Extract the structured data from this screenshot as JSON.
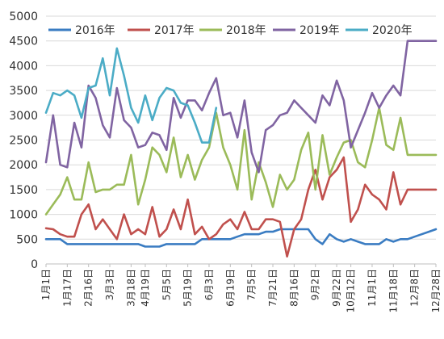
{
  "chart_data": {
    "type": "line",
    "title": "",
    "xlabel": "",
    "ylabel": "",
    "ylim": [
      0,
      5000
    ],
    "y_ticks": [
      0,
      500,
      1000,
      1500,
      2000,
      2500,
      3000,
      3500,
      4000,
      4500,
      5000
    ],
    "grid": true,
    "legend_position": "top",
    "x_tick_labels": [
      "1月1日",
      "1月17日",
      "2月16日",
      "3月3日",
      "3月18日",
      "4月19日",
      "5月5日",
      "5月19日",
      "6月3日",
      "6月19日",
      "7月5日",
      "7月21日",
      "8月16日",
      "9月2日",
      "9月22日",
      "10月12日",
      "11月1日",
      "11月18日",
      "12月8日",
      "12月28日"
    ],
    "num_points": 56,
    "series": [
      {
        "name": "2016年",
        "color": "#3a7cc2",
        "values": [
          500,
          500,
          500,
          400,
          400,
          400,
          400,
          400,
          400,
          400,
          400,
          400,
          400,
          400,
          350,
          350,
          350,
          400,
          400,
          400,
          400,
          400,
          500,
          500,
          500,
          500,
          500,
          550,
          600,
          600,
          600,
          650,
          650,
          700,
          700,
          700,
          700,
          700,
          500,
          400,
          600,
          500,
          450,
          500,
          450,
          400,
          400,
          400,
          500,
          450,
          500,
          500,
          550,
          600,
          650,
          700
        ]
      },
      {
        "name": "2017年",
        "color": "#c0504d",
        "values": [
          720,
          700,
          600,
          550,
          550,
          1000,
          1200,
          700,
          900,
          700,
          500,
          1000,
          600,
          700,
          600,
          1150,
          550,
          700,
          1100,
          700,
          1300,
          600,
          750,
          500,
          600,
          800,
          900,
          700,
          1050,
          700,
          700,
          900,
          900,
          850,
          150,
          700,
          900,
          1500,
          1900,
          1300,
          1750,
          1900,
          2150,
          850,
          1100,
          1600,
          1400,
          1300,
          1100,
          1850,
          1200,
          1500,
          1500,
          1500,
          1500,
          1500
        ]
      },
      {
        "name": "2018年",
        "color": "#9bbb59",
        "values": [
          1000,
          1200,
          1400,
          1750,
          1300,
          1300,
          2050,
          1450,
          1500,
          1500,
          1600,
          1600,
          2200,
          1200,
          1700,
          2350,
          2200,
          1850,
          2550,
          1750,
          2200,
          1700,
          2100,
          2350,
          3050,
          2350,
          2000,
          1500,
          2700,
          1300,
          2050,
          1650,
          1150,
          1800,
          1500,
          1700,
          2300,
          2650,
          1500,
          2600,
          1800,
          2150,
          2450,
          2500,
          2050,
          1950,
          2500,
          3150,
          2400,
          2300,
          2950,
          2200,
          2200,
          2200,
          2200,
          2200
        ]
      },
      {
        "name": "2019年",
        "color": "#8064a2",
        "values": [
          2050,
          3000,
          2000,
          1950,
          2850,
          2350,
          3600,
          3350,
          2800,
          2550,
          3550,
          2900,
          2750,
          2350,
          2400,
          2650,
          2600,
          2300,
          3350,
          2950,
          3300,
          3300,
          3100,
          3450,
          3750,
          3000,
          3050,
          2550,
          3300,
          2250,
          1850,
          2700,
          2800,
          3000,
          3050,
          3300,
          3150,
          3000,
          2850,
          3400,
          3200,
          3700,
          3300,
          2350,
          2700,
          3050,
          3450,
          3150,
          3400,
          3600,
          3400,
          4500,
          4500,
          4500,
          4500,
          4500
        ]
      },
      {
        "name": "2020年",
        "color": "#4bacc6",
        "values": [
          3050,
          3450,
          3400,
          3500,
          3400,
          2950,
          3550,
          3600,
          4150,
          3400,
          4350,
          3800,
          3150,
          2850,
          3400,
          2900,
          3350,
          3550,
          3500,
          3250,
          3200,
          2850,
          2450,
          2450,
          3150
        ]
      }
    ]
  }
}
